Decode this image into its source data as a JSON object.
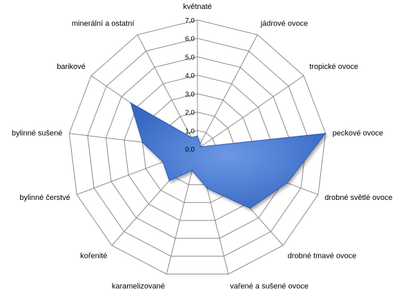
{
  "chart_data": {
    "type": "radar",
    "categories": [
      "květnaté",
      "jádrové ovoce",
      "tropické ovoce",
      "peckové ovoce",
      "drobné světlé ovoce",
      "drobné tmavé ovoce",
      "vařené a sušené ovoce",
      "karamelizované",
      "kořenité",
      "bylinné čerstvé",
      "bylinné sušené",
      "barikové",
      "minerální a ostatní"
    ],
    "series": [
      {
        "values": [
          0.7,
          0.3,
          0.2,
          7.0,
          5.2,
          4.3,
          2.2,
          1.2,
          2.3,
          2.0,
          3.0,
          4.4,
          0.7
        ]
      }
    ],
    "rlim": [
      0,
      7
    ],
    "ticks": [
      0,
      1,
      2,
      3,
      4,
      5,
      6,
      7
    ],
    "tick_labels": [
      "0,0",
      "1,0",
      "2,0",
      "3,0",
      "4,0",
      "5,0",
      "6,0",
      "7,0"
    ],
    "title": "",
    "legend": "none",
    "grid": true,
    "colors": {
      "fill": "#4f7fd6",
      "fill_dark": "#2a58b0",
      "grid": "#888888"
    }
  }
}
